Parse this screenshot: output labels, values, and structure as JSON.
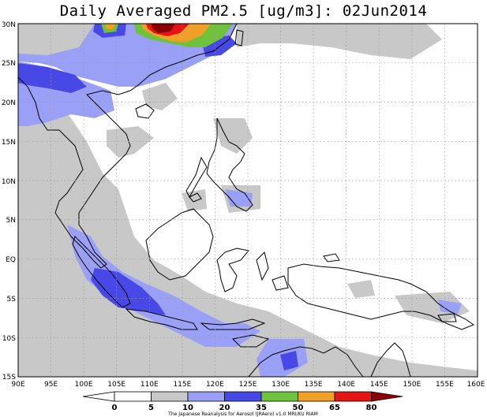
{
  "title": "Daily Averaged PM2.5 [ug/m3]: 02Jun2014",
  "map": {
    "lon_labels": [
      "90E",
      "95E",
      "100E",
      "105E",
      "110E",
      "115E",
      "120E",
      "125E",
      "130E",
      "135E",
      "140E",
      "145E",
      "150E",
      "155E",
      "160E"
    ],
    "lat_labels": [
      "30N",
      "25N",
      "20N",
      "15N",
      "10N",
      "5N",
      "EQ",
      "5S",
      "10S",
      "15S"
    ],
    "lon_range": [
      90,
      160
    ],
    "lat_range": [
      -15,
      30
    ]
  },
  "colorbar": {
    "levels": [
      "0",
      "5",
      "10",
      "20",
      "35",
      "50",
      "65",
      "80"
    ],
    "colors": [
      "#ffffff",
      "#c8c8c8",
      "#9aa0f5",
      "#4848e6",
      "#6ec23c",
      "#f0a028",
      "#e61414",
      "#8c0000"
    ],
    "credit": "The Japanese Reanalysis for Aerosol (JRAero) v1.0 MRI/KU RIAM"
  }
}
